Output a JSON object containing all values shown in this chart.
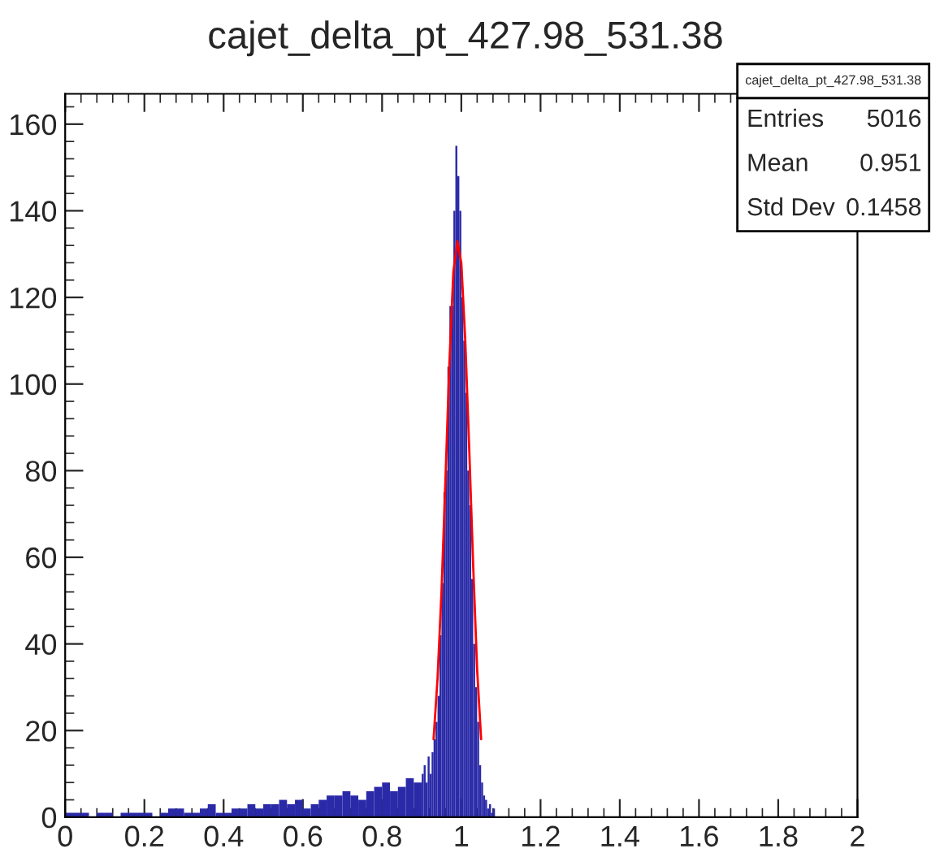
{
  "chart_data": {
    "type": "histogram",
    "title": "cajet_delta_pt_427.98_531.38",
    "series": [
      {
        "color": "#2a2aa8",
        "bins": [
          0,
          0.02,
          0.04,
          0.06,
          0.08,
          0.1,
          0.12,
          0.14,
          0.16,
          0.18,
          0.2,
          0.22,
          0.24,
          0.26,
          0.28,
          0.3,
          0.32,
          0.34,
          0.36,
          0.38,
          0.4,
          0.42,
          0.44,
          0.46,
          0.48,
          0.5,
          0.52,
          0.54,
          0.56,
          0.58,
          0.6,
          0.62,
          0.64,
          0.66,
          0.68,
          0.7,
          0.72,
          0.74,
          0.76,
          0.78,
          0.8,
          0.82,
          0.84,
          0.86,
          0.88,
          0.9,
          0.905,
          0.91,
          0.915,
          0.92,
          0.925,
          0.93,
          0.935,
          0.94,
          0.945,
          0.95,
          0.955,
          0.96,
          0.965,
          0.97,
          0.975,
          0.98,
          0.985,
          0.99,
          0.995,
          1.0,
          1.005,
          1.01,
          1.015,
          1.02,
          1.025,
          1.03,
          1.035,
          1.04,
          1.045,
          1.05,
          1.055,
          1.06,
          1.065,
          1.07,
          1.075,
          1.08,
          1.085
        ],
        "values": [
          1,
          1,
          1,
          0,
          1,
          1,
          0,
          1,
          1,
          1,
          1,
          0,
          1,
          2,
          2,
          1,
          1,
          2,
          3,
          1,
          1,
          2,
          2,
          3,
          2,
          3,
          3,
          4,
          3,
          4,
          2,
          3,
          4,
          5,
          5,
          6,
          5,
          4,
          6,
          7,
          8,
          6,
          7,
          9,
          8,
          10,
          12,
          8,
          14,
          10,
          15,
          18,
          22,
          28,
          42,
          54,
          75,
          80,
          104,
          118,
          118,
          140,
          155,
          148,
          140,
          120,
          110,
          98,
          80,
          72,
          55,
          40,
          30,
          22,
          12,
          8,
          5,
          4,
          2,
          3,
          1,
          2
        ]
      },
      {
        "type": "line",
        "color": "#ff0000",
        "x": [
          0.93,
          0.94,
          0.95,
          0.96,
          0.97,
          0.98,
          0.99,
          1.0,
          1.01,
          1.02,
          1.03,
          1.04,
          1.05
        ],
        "values": [
          18,
          32,
          52,
          78,
          105,
          126,
          133,
          128,
          110,
          85,
          58,
          34,
          18
        ]
      }
    ],
    "xlim": [
      0,
      2
    ],
    "ylim": [
      0,
      167
    ],
    "xticks": [
      0,
      0.2,
      0.4,
      0.6,
      0.8,
      1,
      1.2,
      1.4,
      1.6,
      1.8,
      2
    ],
    "yticks": [
      0,
      20,
      40,
      60,
      80,
      100,
      120,
      140,
      160
    ],
    "annotations": [
      "cajet_delta_pt_427.98_531.38",
      "Entries",
      "5016",
      "Mean",
      "0.951",
      "Std Dev",
      "0.1458"
    ]
  }
}
